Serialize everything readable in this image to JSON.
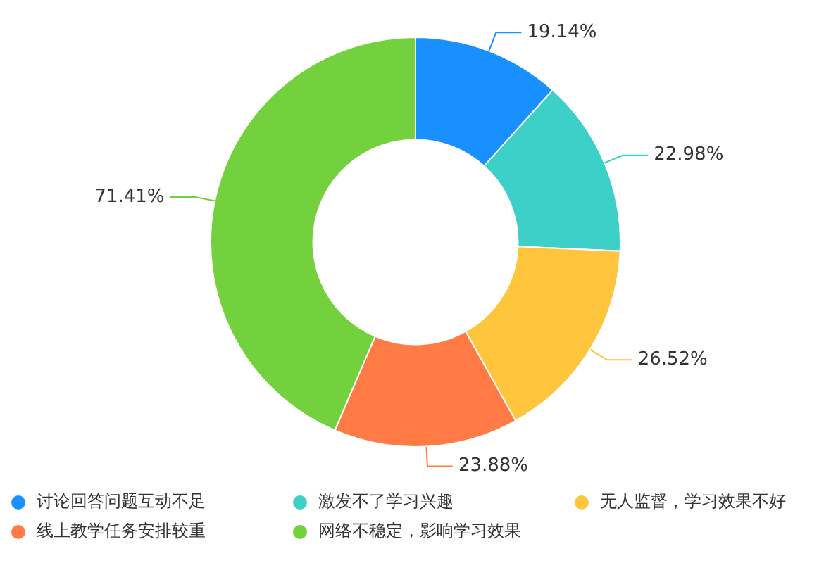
{
  "chart_data": {
    "type": "donut",
    "categories": [
      "讨论回答问题互动不足",
      "激发不了学习兴趣",
      "无人监督，学习效果不好",
      "线上教学任务安排较重",
      "网络不稳定，影响学习效果"
    ],
    "values": [
      19.14,
      22.98,
      26.52,
      23.88,
      71.41
    ],
    "value_labels": [
      "19.14%",
      "22.98%",
      "26.52%",
      "23.88%",
      "71.41%"
    ],
    "colors": [
      "#1890ff",
      "#3dd0c9",
      "#ffc53d",
      "#ff7a45",
      "#73d13d"
    ],
    "legend": "bottom"
  }
}
